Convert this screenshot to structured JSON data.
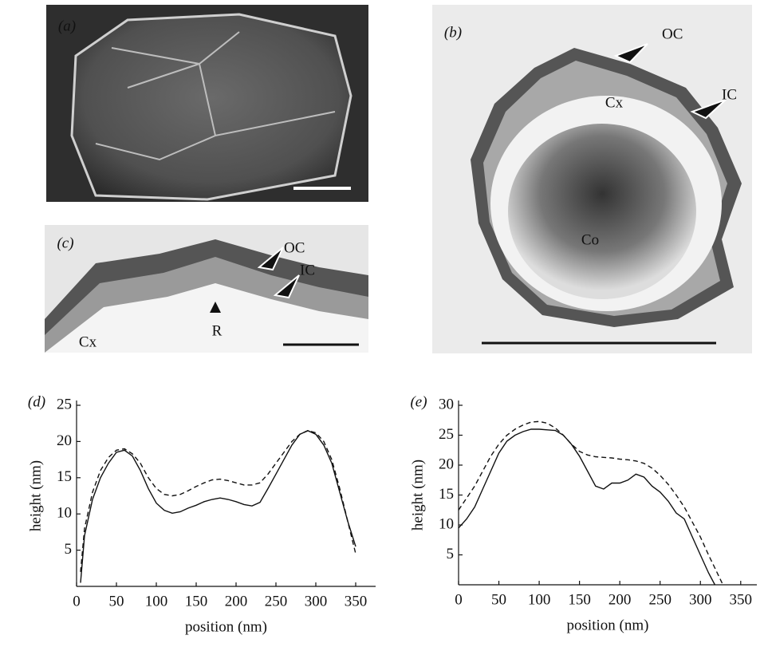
{
  "panels": {
    "a": {
      "label": "(a)"
    },
    "b": {
      "label": "(b)",
      "oc": "OC",
      "ic": "IC",
      "cx": "Cx",
      "co": "Co"
    },
    "c": {
      "label": "(c)",
      "oc": "OC",
      "ic": "IC",
      "r": "R",
      "cx": "Cx"
    }
  },
  "chart_data": [
    {
      "type": "line",
      "panel_label": "(d)",
      "xlabel": "position (nm)",
      "ylabel": "height (nm)",
      "x": [
        5,
        10,
        20,
        30,
        40,
        50,
        60,
        70,
        80,
        90,
        100,
        110,
        120,
        130,
        140,
        150,
        160,
        170,
        180,
        190,
        200,
        210,
        220,
        230,
        240,
        250,
        260,
        270,
        280,
        290,
        300,
        310,
        320,
        330,
        340,
        350
      ],
      "series": [
        {
          "color": "#111111",
          "dashed": false,
          "values": [
            0.5,
            7,
            12,
            15,
            17,
            18.5,
            18.8,
            18,
            16,
            13.5,
            11.5,
            10.5,
            10.1,
            10.3,
            10.8,
            11.2,
            11.7,
            12,
            12.2,
            12,
            11.7,
            11.3,
            11.1,
            11.6,
            13.5,
            15.5,
            17.5,
            19.5,
            21,
            21.5,
            21,
            19.5,
            17,
            13,
            9,
            5.5
          ]
        },
        {
          "color": "#111111",
          "dashed": true,
          "values": [
            2,
            8,
            13,
            16,
            17.8,
            18.8,
            19,
            18.3,
            17,
            15,
            13.5,
            12.7,
            12.5,
            12.7,
            13.2,
            13.8,
            14.3,
            14.7,
            14.8,
            14.6,
            14.3,
            14,
            14,
            14.3,
            15.5,
            17,
            18.5,
            20,
            21,
            21.5,
            21.2,
            20,
            17.5,
            13.5,
            9,
            4.5
          ]
        }
      ],
      "xlim": [
        0,
        375
      ],
      "xticks": [
        0,
        50,
        100,
        150,
        200,
        250,
        300,
        350
      ],
      "ylim": [
        0,
        25
      ],
      "yticks": [
        5,
        10,
        15,
        20,
        25
      ]
    },
    {
      "type": "line",
      "panel_label": "(e)",
      "xlabel": "position (nm)",
      "ylabel": "height (nm)",
      "x": [
        0,
        10,
        20,
        30,
        40,
        50,
        60,
        70,
        80,
        90,
        100,
        110,
        120,
        130,
        140,
        150,
        160,
        170,
        180,
        190,
        200,
        210,
        220,
        230,
        240,
        250,
        260,
        270,
        280,
        290,
        300,
        310,
        318,
        328
      ],
      "series": [
        {
          "color": "#111111",
          "dashed": false,
          "values": [
            9.5,
            11,
            13,
            16,
            19,
            22,
            24,
            25,
            25.6,
            26,
            26,
            25.9,
            25.8,
            25,
            23.5,
            21.5,
            19,
            16.5,
            16,
            17,
            17,
            17.5,
            18.5,
            18,
            16.5,
            15.5,
            14,
            12,
            11,
            8,
            5,
            2,
            0,
            null
          ]
        },
        {
          "color": "#111111",
          "dashed": true,
          "values": [
            12.5,
            14.5,
            16.5,
            19,
            21.5,
            23.5,
            25,
            26,
            26.7,
            27.2,
            27.3,
            27,
            26.2,
            25,
            23.5,
            22.3,
            21.7,
            21.4,
            21.3,
            21.2,
            21,
            20.9,
            20.7,
            20.3,
            19.5,
            18.3,
            16.8,
            15,
            13,
            10.5,
            8,
            5,
            2.8,
            0
          ]
        }
      ],
      "xlim": [
        0,
        370
      ],
      "xticks": [
        0,
        50,
        100,
        150,
        200,
        250,
        300,
        350
      ],
      "ylim": [
        0,
        30
      ],
      "yticks": [
        5,
        10,
        15,
        20,
        25,
        30
      ]
    }
  ]
}
